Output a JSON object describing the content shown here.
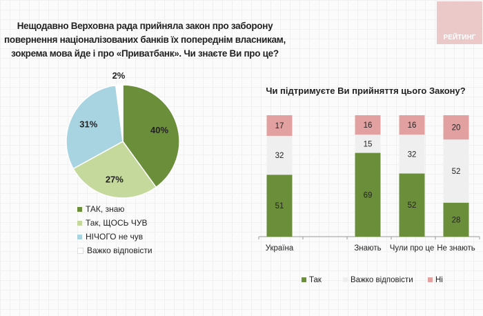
{
  "logo": "РЕЙТИНГ",
  "chart_data": [
    {
      "type": "pie",
      "title": "Нещодавно Верховна рада прийняла закон про заборону повернення націоналізованих банків їх попереднім власникам, зокрема мова йде і про «Приватбанк». Чи знаєте Ви про це?",
      "slices": [
        {
          "label": "ТАК, знаю",
          "value": 40,
          "color": "#6b8e3a"
        },
        {
          "label": "Так, ЩОСЬ ЧУВ",
          "value": 27,
          "color": "#c5d99c"
        },
        {
          "label": "НІЧОГО не чув",
          "value": 31,
          "color": "#a8d3e0"
        },
        {
          "label": "Важко відповісти",
          "value": 2,
          "color": "#ffffff"
        }
      ],
      "data_labels": [
        "40%",
        "27%",
        "31%",
        "2%"
      ],
      "legend": "bottom-left"
    },
    {
      "type": "bar",
      "stacked": true,
      "title": "Чи підтримуєте Ви прийняття цього Закону?",
      "categories": [
        "Україна",
        "",
        "Знають",
        "Чули про це",
        "Не знають"
      ],
      "series": [
        {
          "name": "Так",
          "values": [
            51,
            null,
            69,
            52,
            28
          ],
          "color": "#6b8e3a"
        },
        {
          "name": "Важко відповісти",
          "values": [
            32,
            null,
            15,
            32,
            52
          ],
          "color": "#efefef"
        },
        {
          "name": "Ні",
          "values": [
            17,
            null,
            16,
            16,
            20
          ],
          "color": "#e3a0a0"
        }
      ],
      "ylim": [
        0,
        100
      ],
      "legend": "bottom"
    }
  ]
}
